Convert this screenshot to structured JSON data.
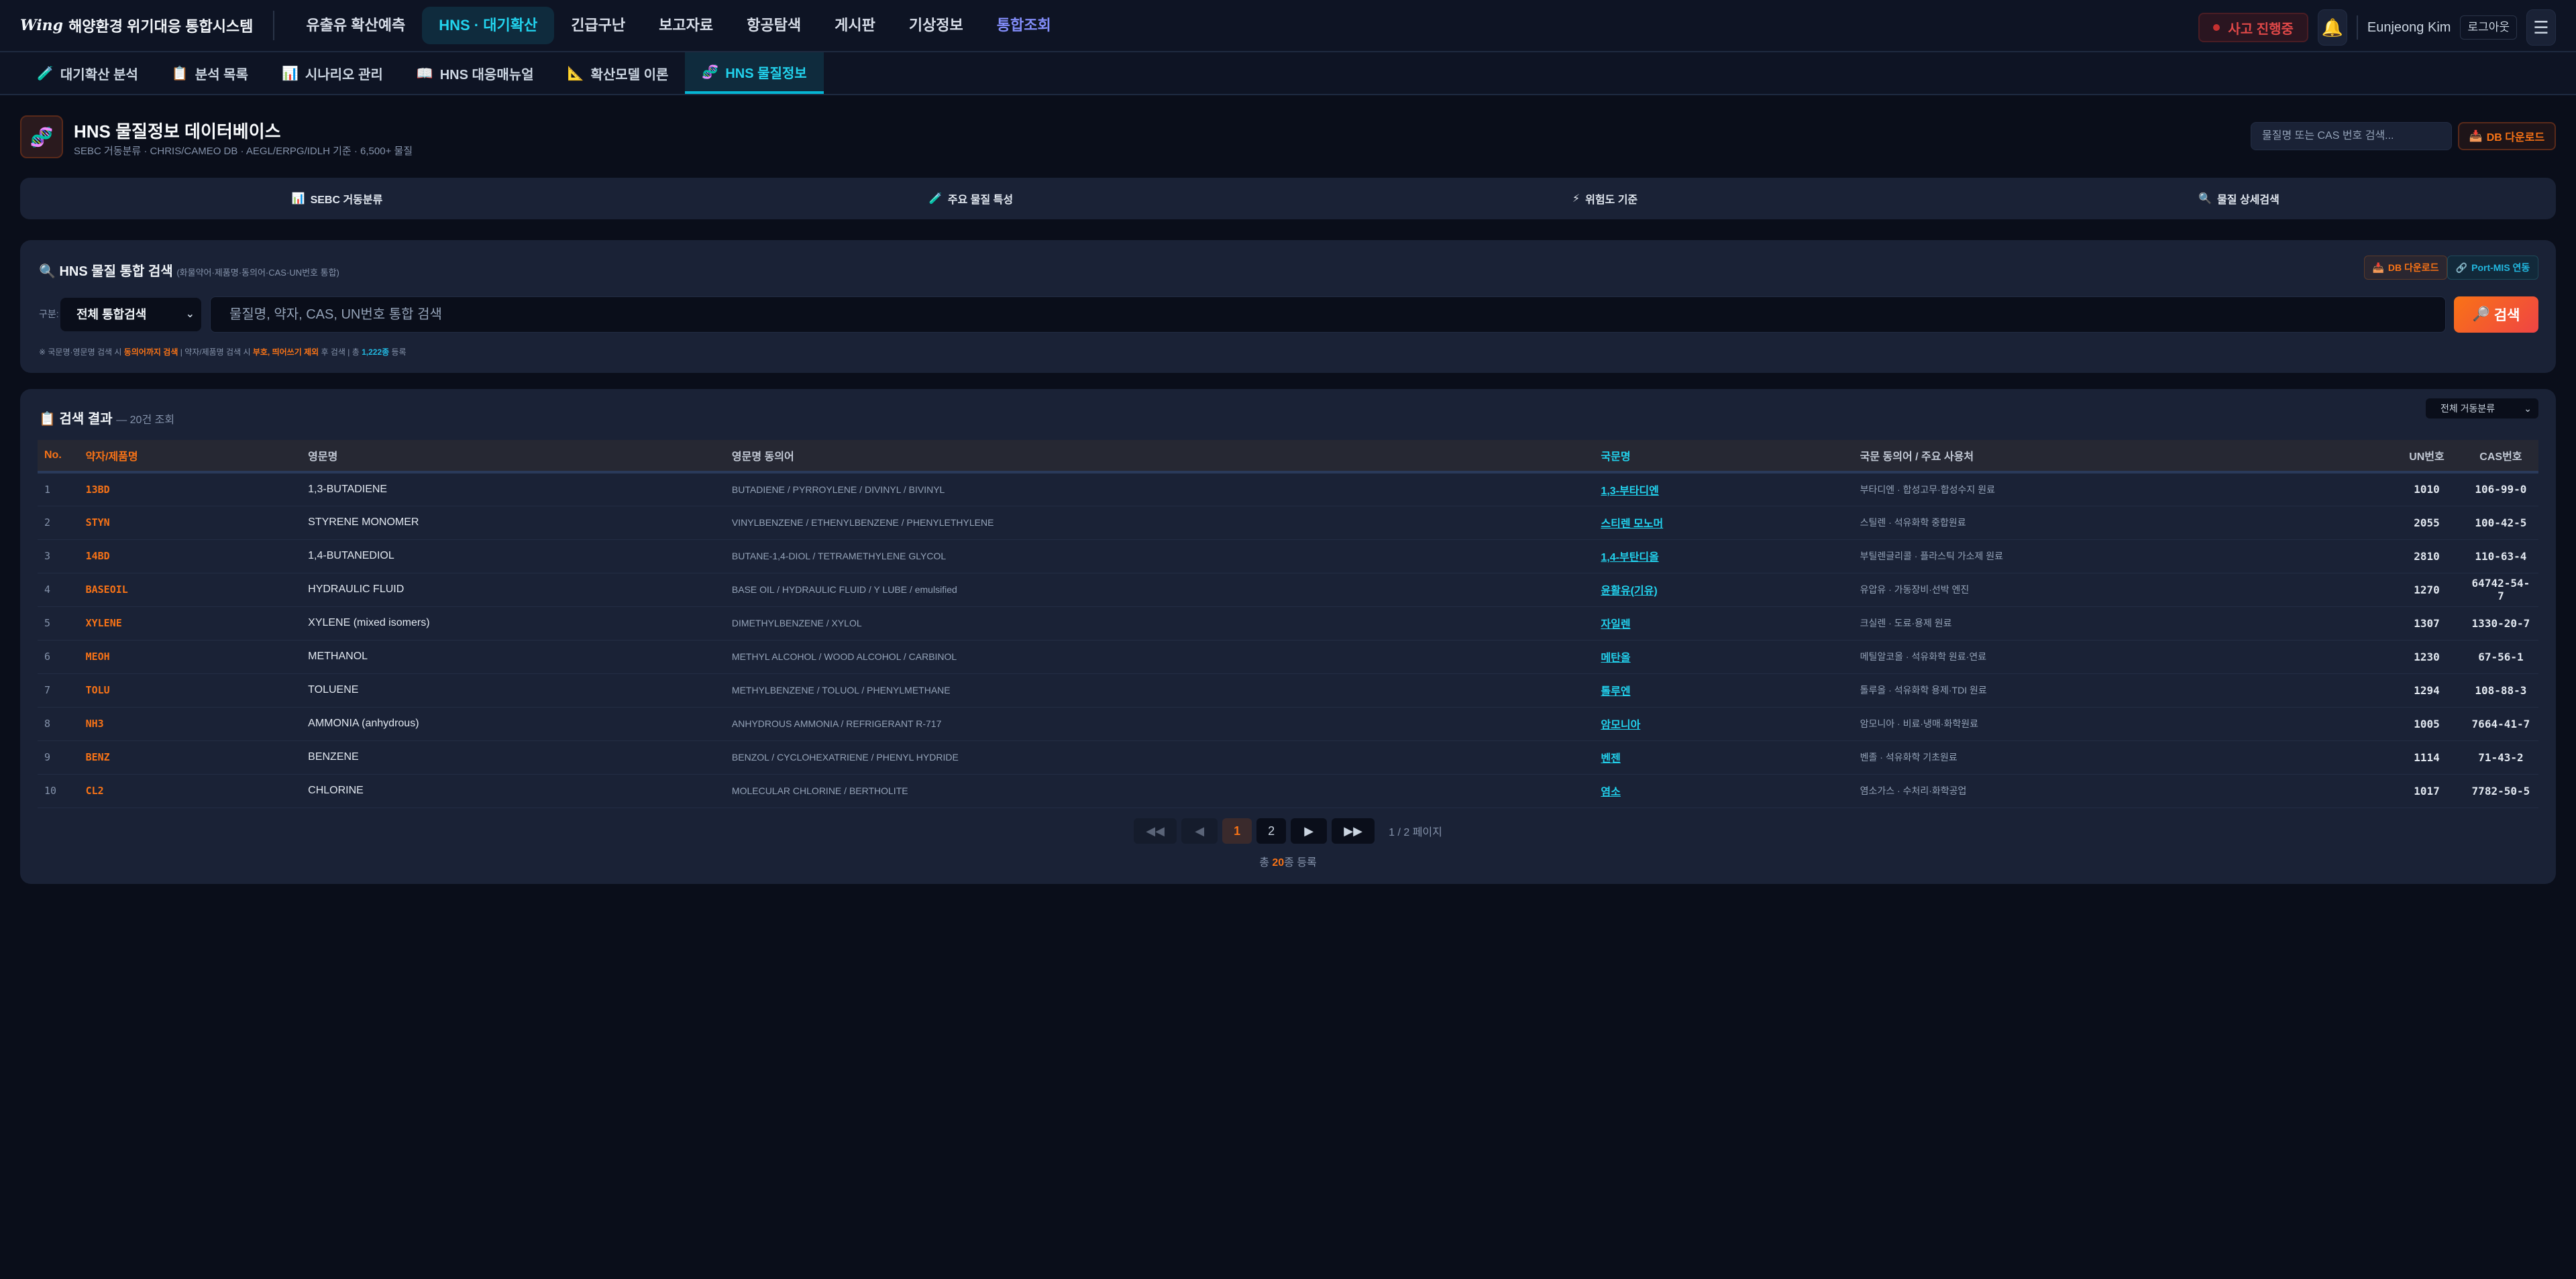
{
  "app": {
    "logo_mark": "Wing",
    "title": "해양환경 위기대응 통합시스템"
  },
  "nav": [
    {
      "label": "유출유 확산예측"
    },
    {
      "label": "HNS · 대기확산",
      "active": true
    },
    {
      "label": "긴급구난"
    },
    {
      "label": "보고자료"
    },
    {
      "label": "항공탐색"
    },
    {
      "label": "게시판"
    },
    {
      "label": "기상정보"
    },
    {
      "label": "통합조회",
      "special": true
    }
  ],
  "topright": {
    "incident": "사고 진행중",
    "user": "Eunjeong Kim",
    "logout": "로그아웃"
  },
  "subnav": [
    {
      "label": "대기확산 분석",
      "icon": "🧪"
    },
    {
      "label": "분석 목록",
      "icon": "📋"
    },
    {
      "label": "시나리오 관리",
      "icon": "📊"
    },
    {
      "label": "HNS 대응매뉴얼",
      "icon": "📖"
    },
    {
      "label": "확산모델 이론",
      "icon": "📐"
    },
    {
      "label": "HNS 물질정보",
      "icon": "🧬",
      "active": true
    }
  ],
  "header": {
    "title": "HNS 물질정보 데이터베이스",
    "subtitle": "SEBC 거동분류 · CHRIS/CAMEO DB · AEGL/ERPG/IDLH 기준 · 6,500+ 물질",
    "search_placeholder": "물질명 또는 CAS 번호 검색...",
    "db_download": "DB 다운로드"
  },
  "quicktabs": [
    {
      "icon": "📊",
      "label": "SEBC 거동분류"
    },
    {
      "icon": "🧪",
      "label": "주요 물질 특성"
    },
    {
      "icon": "⚡",
      "label": "위험도 기준"
    },
    {
      "icon": "🔍",
      "label": "물질 상세검색"
    }
  ],
  "search": {
    "title": "HNS 물질 통합 검색",
    "title_note": "(화물약어·제품명·동의어·CAS·UN번호 통합)",
    "db_download": "DB 다운로드",
    "portmis": "Port-MIS 연동",
    "category_label": "구분:",
    "category_value": "전체 통합검색",
    "placeholder": "물질명, 약자, CAS, UN번호 통합 검색",
    "button": "검색",
    "hint": {
      "p1": "※ 국문명·영문명 검색 시 ",
      "h1": "동의어까지 검색",
      "p2": " | 약자/제품명 검색 시 ",
      "h2": "부호, 띄어쓰기 제외",
      "p3": " 후 검색 | 총 ",
      "h3": "1,222종",
      "p4": " 등록"
    }
  },
  "results": {
    "title": "검색 결과",
    "count": "— 20건 조회",
    "filter": "전체 거동분류",
    "columns": [
      "No.",
      "약자/제품명",
      "영문명",
      "영문명 동의어",
      "국문명",
      "국문 동의어 / 주요 사용처",
      "UN번호",
      "CAS번호"
    ],
    "rows": [
      {
        "no": "1",
        "abbr": "13BD",
        "en": "1,3-BUTADIENE",
        "syn": "BUTADIENE / PYRROYLENE / DIVINYL / BIVINYL",
        "kr": "1,3-부타디엔",
        "kuse": "부타디엔 · 합성고무·합성수지 원료",
        "un": "1010",
        "cas": "106-99-0"
      },
      {
        "no": "2",
        "abbr": "STYN",
        "en": "STYRENE MONOMER",
        "syn": "VINYLBENZENE / ETHENYLBENZENE / PHENYLETHYLENE",
        "kr": "스티렌 모노머",
        "kuse": "스틸렌 · 석유화학 중합원료",
        "un": "2055",
        "cas": "100-42-5"
      },
      {
        "no": "3",
        "abbr": "14BD",
        "en": "1,4-BUTANEDIOL",
        "syn": "BUTANE-1,4-DIOL / TETRAMETHYLENE GLYCOL",
        "kr": "1,4-부탄디올",
        "kuse": "부틸렌글리콜 · 플라스틱 가소제 원료",
        "un": "2810",
        "cas": "110-63-4"
      },
      {
        "no": "4",
        "abbr": "BASEOIL",
        "en": "HYDRAULIC FLUID",
        "syn": "BASE OIL / HYDRAULIC FLUID / Y LUBE / emulsified",
        "kr": "윤활유(기유)",
        "kuse": "유압유 · 가동장비·선박 엔진",
        "un": "1270",
        "cas": "64742-54-7"
      },
      {
        "no": "5",
        "abbr": "XYLENE",
        "en": "XYLENE (mixed isomers)",
        "syn": "DIMETHYLBENZENE / XYLOL",
        "kr": "자일렌",
        "kuse": "크실렌 · 도료·용제 원료",
        "un": "1307",
        "cas": "1330-20-7"
      },
      {
        "no": "6",
        "abbr": "MEOH",
        "en": "METHANOL",
        "syn": "METHYL ALCOHOL / WOOD ALCOHOL / CARBINOL",
        "kr": "메탄올",
        "kuse": "메틸알코올 · 석유화학 원료·연료",
        "un": "1230",
        "cas": "67-56-1"
      },
      {
        "no": "7",
        "abbr": "TOLU",
        "en": "TOLUENE",
        "syn": "METHYLBENZENE / TOLUOL / PHENYLMETHANE",
        "kr": "톨루엔",
        "kuse": "톨루올 · 석유화학 용제·TDI 원료",
        "un": "1294",
        "cas": "108-88-3"
      },
      {
        "no": "8",
        "abbr": "NH3",
        "en": "AMMONIA (anhydrous)",
        "syn": "ANHYDROUS AMMONIA / REFRIGERANT R-717",
        "kr": "암모니아",
        "kuse": "암모니아 · 비료·냉매·화학원료",
        "un": "1005",
        "cas": "7664-41-7"
      },
      {
        "no": "9",
        "abbr": "BENZ",
        "en": "BENZENE",
        "syn": "BENZOL / CYCLOHEXATRIENE / PHENYL HYDRIDE",
        "kr": "벤젠",
        "kuse": "벤졸 · 석유화학 기초원료",
        "un": "1114",
        "cas": "71-43-2"
      },
      {
        "no": "10",
        "abbr": "CL2",
        "en": "CHLORINE",
        "syn": "MOLECULAR CHLORINE / BERTHOLITE",
        "kr": "염소",
        "kuse": "염소가스 · 수처리·화학공업",
        "un": "1017",
        "cas": "7782-50-5"
      }
    ],
    "pager": {
      "first": "◀◀",
      "prev": "◀",
      "pages": [
        "1",
        "2"
      ],
      "current": "1",
      "next": "▶",
      "last": "▶▶",
      "info": "1 / 2 페이지"
    },
    "total": {
      "pre": "총 ",
      "num": "20",
      "post": "종 등록"
    }
  },
  "colors": {
    "accent_cyan": "#22d3ee",
    "accent_orange": "#f97316",
    "bg": "#0a0e1a",
    "panel": "#1a2236",
    "danger": "#e04848"
  }
}
